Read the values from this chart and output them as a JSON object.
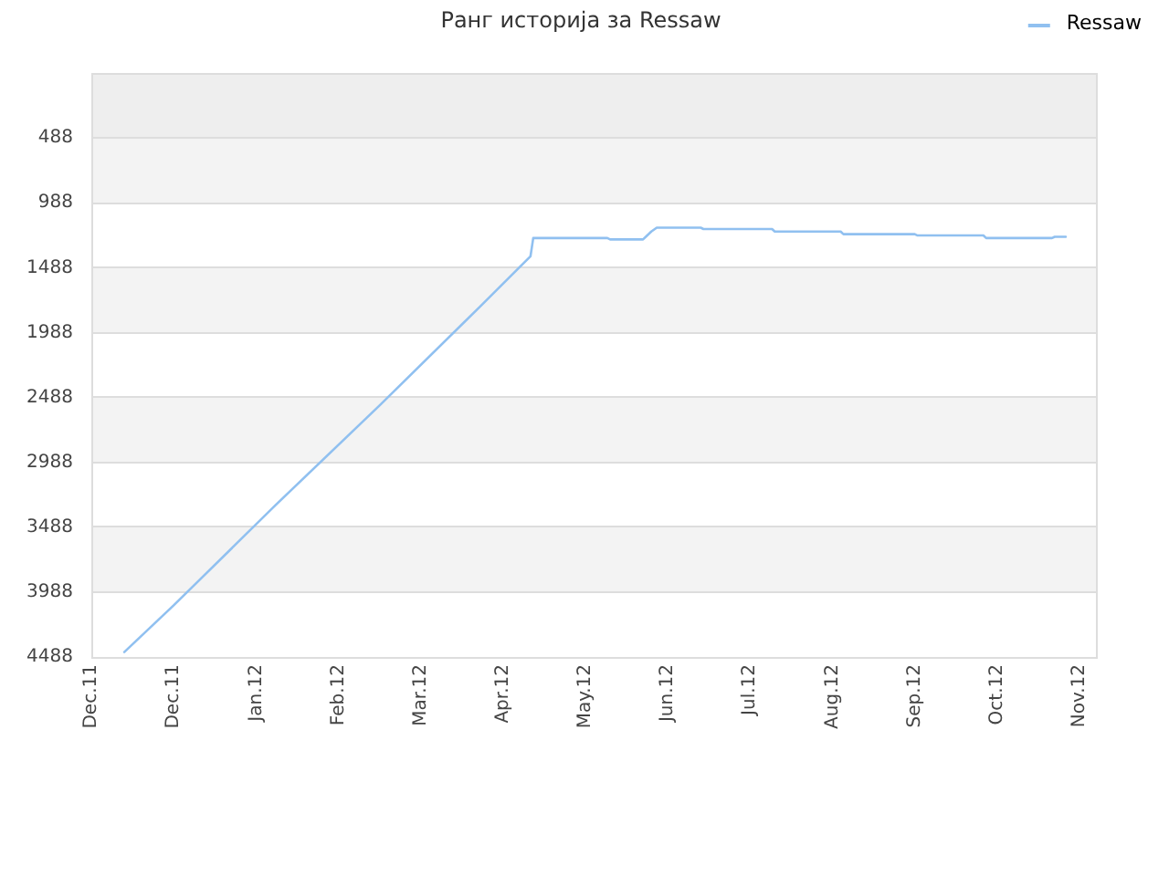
{
  "chart_data": {
    "type": "line",
    "title": "Ранг историја за Ressaw",
    "x": [
      "2011-12-13",
      "2011-12-31",
      "2012-02-06",
      "2012-03-15",
      "2012-04-21",
      "2012-05-09",
      "2012-05-10",
      "2012-06-06",
      "2012-06-07",
      "2012-06-19",
      "2012-06-20",
      "2012-06-22",
      "2012-06-24",
      "2012-07-10",
      "2012-07-11",
      "2012-08-05",
      "2012-08-06",
      "2012-08-30",
      "2012-08-31",
      "2012-09-26",
      "2012-09-27",
      "2012-10-21",
      "2012-10-22",
      "2012-11-15",
      "2012-11-16",
      "2012-11-20"
    ],
    "series": [
      {
        "name": "Ressaw",
        "color": "#90c0f0",
        "values": [
          4450,
          4090,
          3320,
          2550,
          1780,
          1400,
          1260,
          1260,
          1270,
          1270,
          1250,
          1210,
          1180,
          1180,
          1190,
          1190,
          1210,
          1210,
          1230,
          1230,
          1240,
          1240,
          1260,
          1260,
          1250,
          1250
        ]
      }
    ],
    "xlim": [
      "2011-12-01",
      "2012-12-01"
    ],
    "xticks": [
      {
        "value": "2011-12-01",
        "label": "Dec.11"
      },
      {
        "value": "2011-12-31",
        "label": "Dec.11"
      },
      {
        "value": "2012-01-30",
        "label": "Jan.12"
      },
      {
        "value": "2012-02-29",
        "label": "Feb.12"
      },
      {
        "value": "2012-03-30",
        "label": "Mar.12"
      },
      {
        "value": "2012-04-29",
        "label": "Apr.12"
      },
      {
        "value": "2012-05-29",
        "label": "May.12"
      },
      {
        "value": "2012-06-28",
        "label": "Jun.12"
      },
      {
        "value": "2012-07-28",
        "label": "Jul.12"
      },
      {
        "value": "2012-08-27",
        "label": "Aug.12"
      },
      {
        "value": "2012-09-26",
        "label": "Sep.12"
      },
      {
        "value": "2012-10-26",
        "label": "Oct.12"
      },
      {
        "value": "2012-11-25",
        "label": "Nov.12"
      }
    ],
    "ylim": [
      4488,
      -12
    ],
    "yticks": [
      488,
      988,
      1488,
      1988,
      2488,
      2988,
      3488,
      3988,
      4488
    ],
    "bands": [
      {
        "axis": "y",
        "from": -12,
        "to": 488,
        "color": "#eeeeee"
      }
    ],
    "grid": "y",
    "legend": "top right"
  }
}
